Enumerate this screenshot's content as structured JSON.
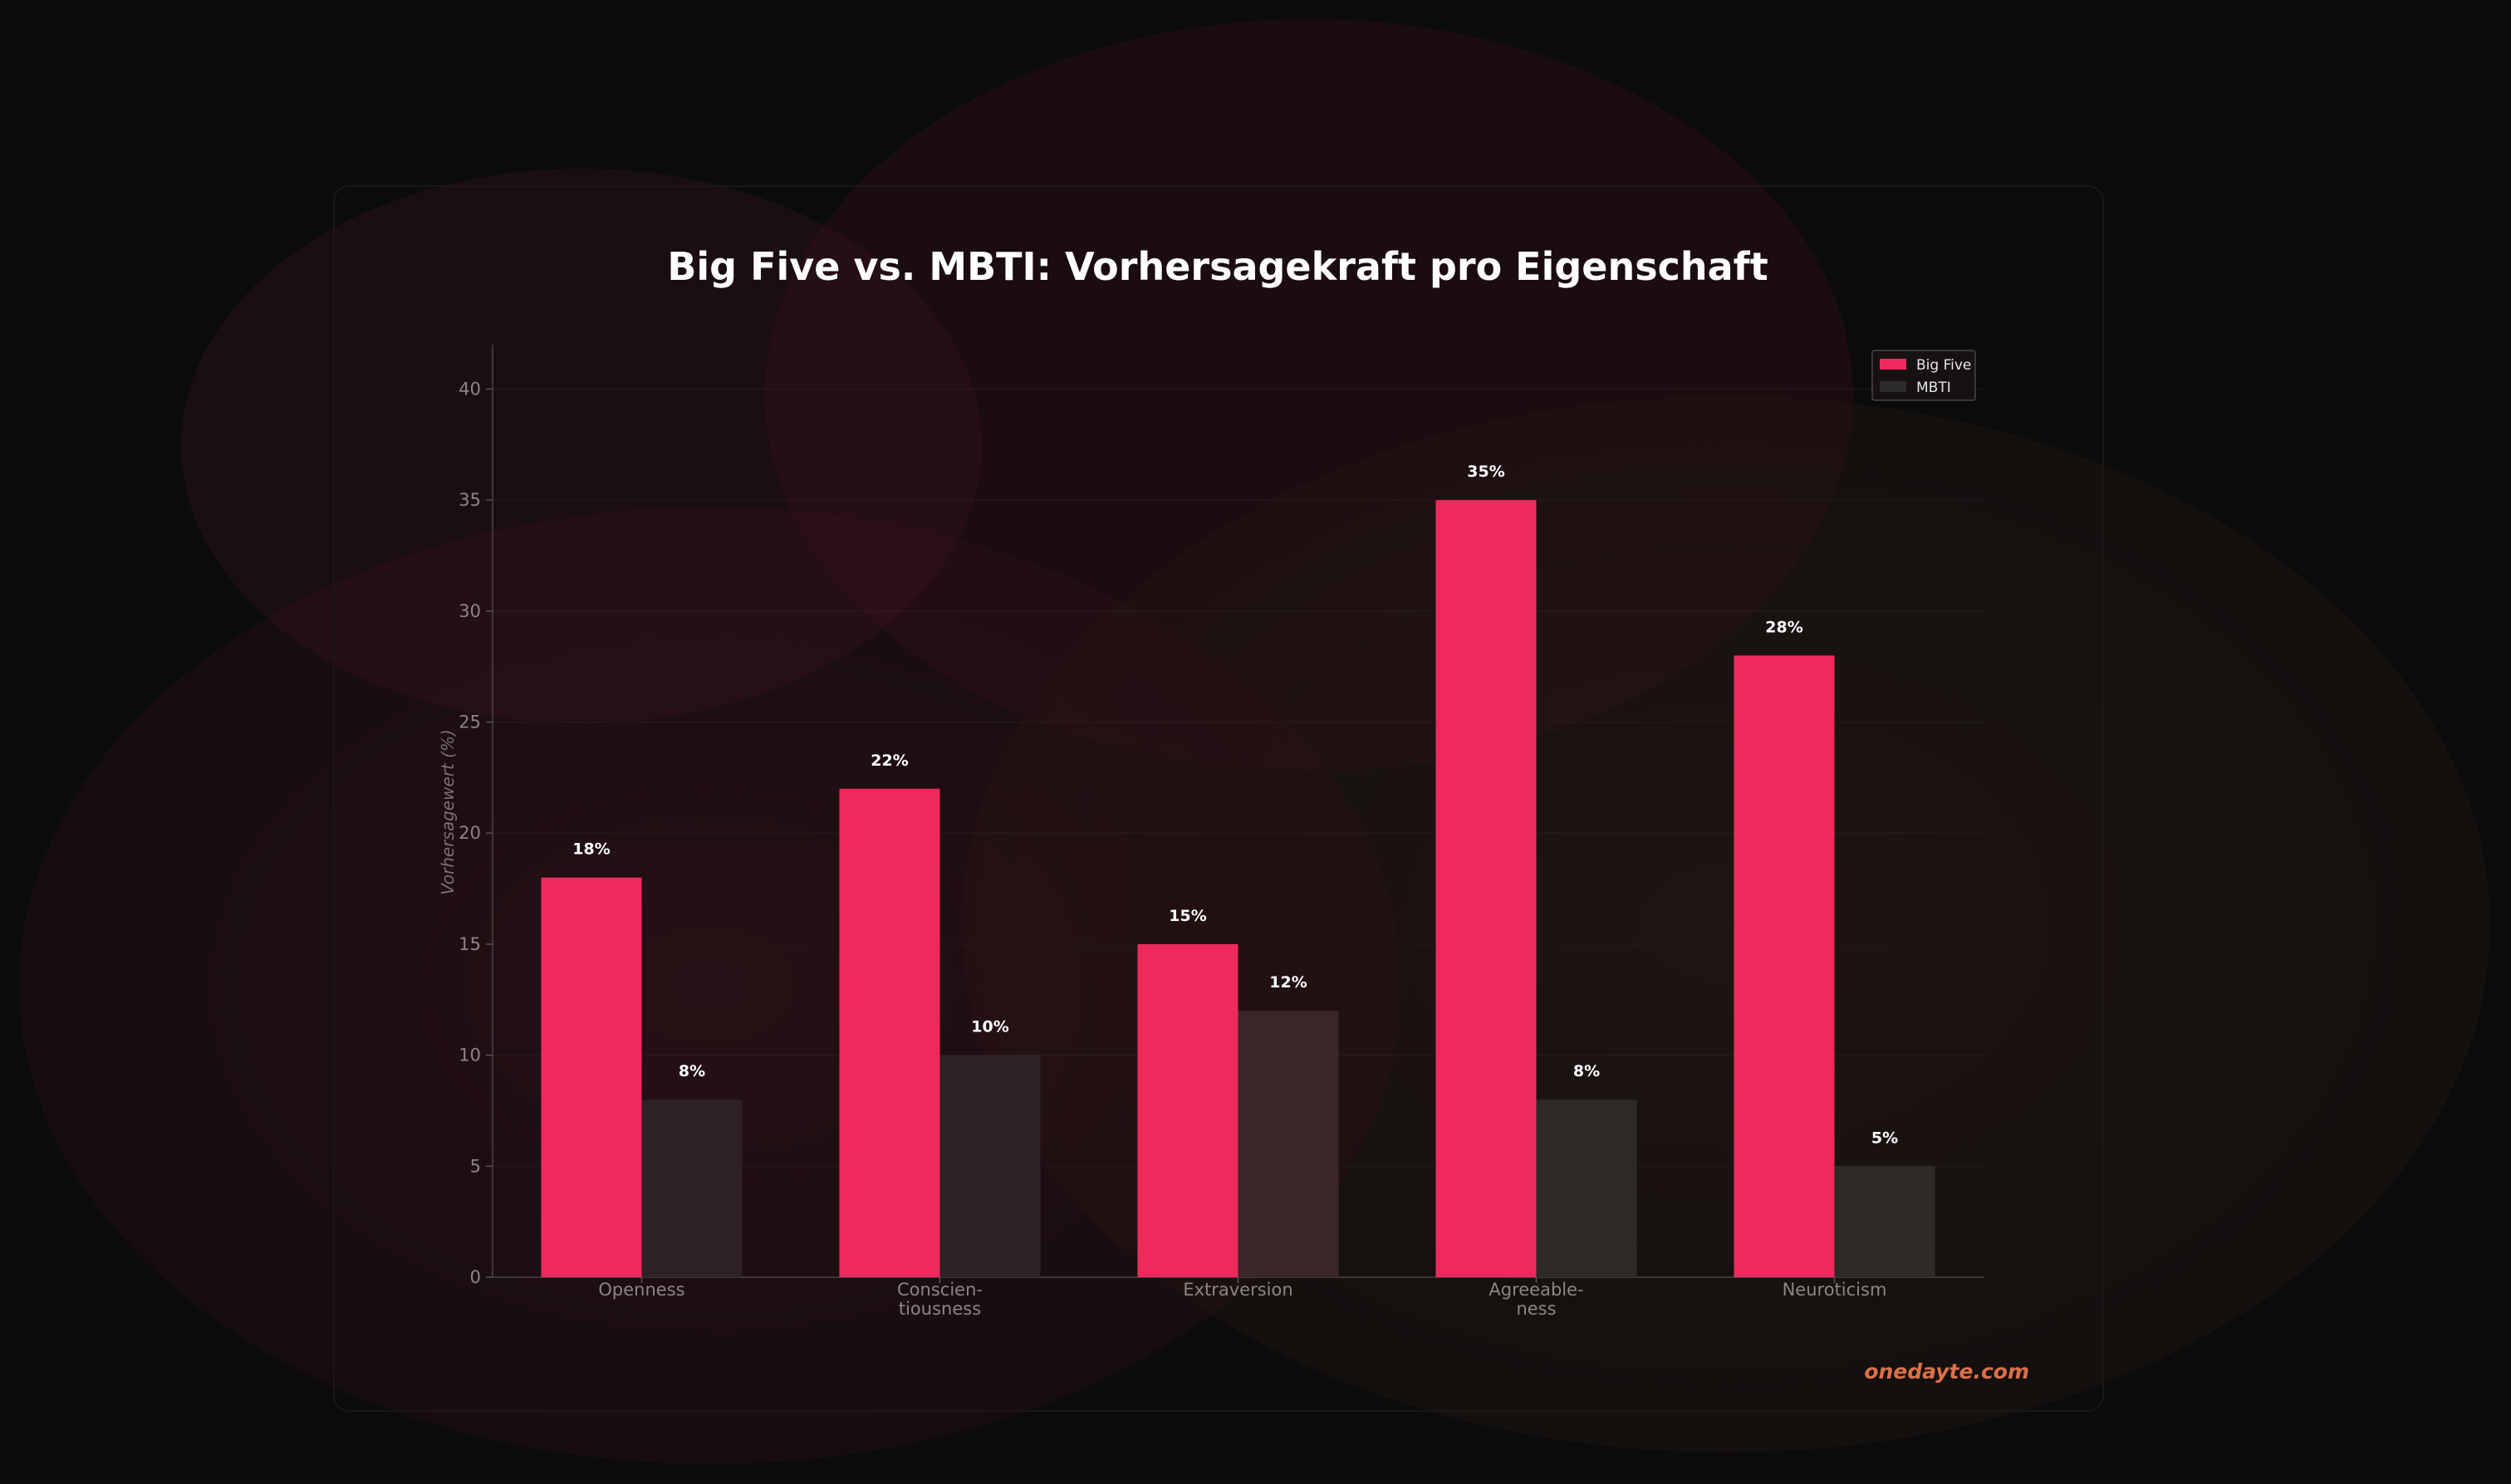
{
  "chart_data": {
    "type": "bar",
    "title": "Big Five vs. MBTI: Vorhersagekraft pro Eigenschaft",
    "ylabel": "Vorhersagewert (%)",
    "xlabel": "",
    "ylim": [
      0,
      42
    ],
    "yticks": [
      0,
      5,
      10,
      15,
      20,
      25,
      30,
      35,
      40
    ],
    "categories": [
      [
        "Openness"
      ],
      [
        "Conscien-",
        "tiousness"
      ],
      [
        "Extraversion"
      ],
      [
        "Agreeable-",
        "ness"
      ],
      [
        "Neuroticism"
      ]
    ],
    "series": [
      {
        "name": "Big Five",
        "values": [
          18,
          22,
          15,
          35,
          28
        ],
        "labels": [
          "18%",
          "22%",
          "15%",
          "35%",
          "28%"
        ],
        "color": "#ee2a5d"
      },
      {
        "name": "MBTI",
        "values": [
          8,
          10,
          12,
          8,
          5
        ],
        "labels": [
          "8%",
          "10%",
          "12%",
          "8%",
          "5%"
        ],
        "color": "#2d2a2a"
      }
    ],
    "grid": true,
    "legend": "top-right"
  },
  "brand": {
    "text": "onedayte.com",
    "color": "#d9704a"
  },
  "colors": {
    "background": "#0b0b0b",
    "accent": "#ee2a5d"
  }
}
